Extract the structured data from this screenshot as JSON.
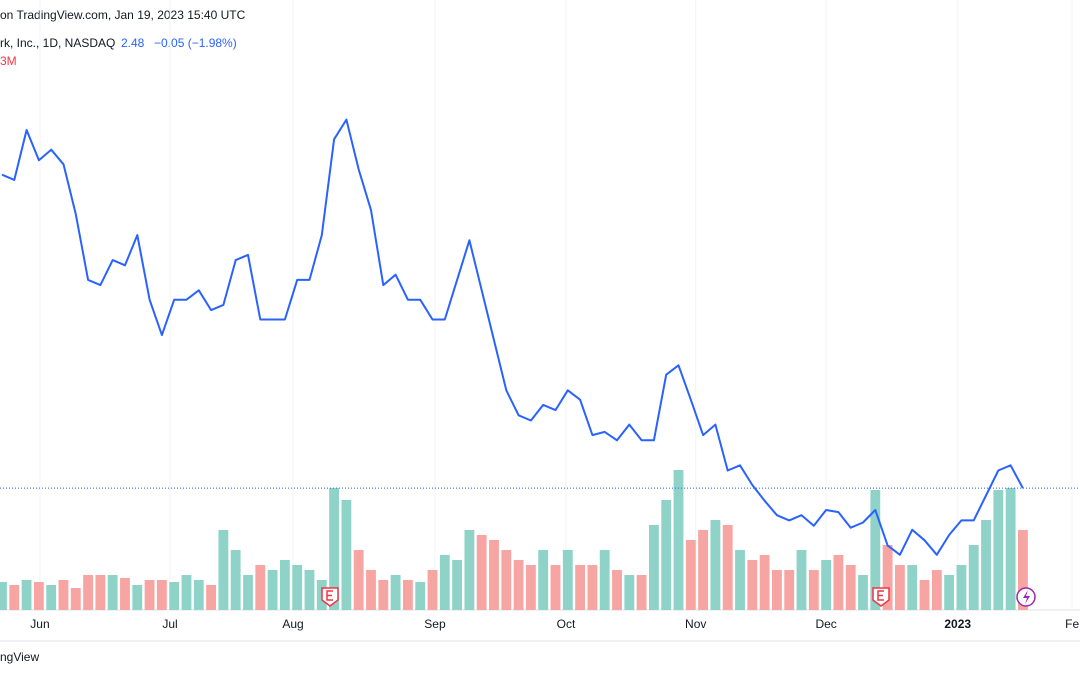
{
  "chart_data": {
    "type": "line",
    "header": "on TradingView.com, Jan 19, 2023 15:40 UTC",
    "symbol": "rk, Inc., 1D, NASDAQ",
    "last_price": "2.48",
    "change": "−0.05 (−1.98%)",
    "volume_label": "3M",
    "footer": "ngView",
    "categories": [
      null,
      null,
      null,
      null,
      null,
      null,
      null,
      null,
      null,
      null,
      null,
      null,
      null,
      null,
      null,
      null,
      null,
      null,
      null,
      null,
      null,
      null,
      null,
      null,
      null,
      null,
      null,
      null,
      null,
      null,
      null,
      null,
      null,
      null,
      null,
      null,
      null,
      null,
      null,
      null,
      null,
      null,
      null,
      null,
      null,
      null,
      null,
      null,
      null,
      null,
      null,
      null,
      null,
      null,
      null,
      null,
      null,
      null,
      null,
      null,
      null,
      null,
      null,
      null,
      null,
      null,
      null,
      null,
      null,
      null,
      null,
      null,
      null,
      null,
      null,
      null,
      null,
      null,
      null,
      null,
      null,
      null,
      null,
      null
    ],
    "values": [
      5.49,
      5.44,
      5.92,
      5.63,
      5.73,
      5.59,
      5.11,
      4.48,
      4.43,
      4.67,
      4.62,
      4.91,
      4.29,
      3.95,
      4.29,
      4.29,
      4.38,
      4.19,
      4.24,
      4.67,
      4.72,
      4.1,
      4.1,
      4.1,
      4.48,
      4.48,
      4.91,
      5.83,
      6.02,
      5.54,
      5.15,
      4.43,
      4.53,
      4.29,
      4.29,
      4.1,
      4.1,
      4.48,
      4.86,
      4.38,
      3.9,
      3.42,
      3.18,
      3.13,
      3.28,
      3.23,
      3.42,
      3.33,
      2.99,
      3.02,
      2.94,
      3.09,
      2.94,
      2.94,
      3.57,
      3.66,
      3.33,
      2.99,
      3.09,
      2.65,
      2.7,
      2.51,
      2.36,
      2.22,
      2.17,
      2.22,
      2.12,
      2.27,
      2.25,
      2.1,
      2.15,
      2.27,
      1.93,
      1.84,
      2.08,
      1.98,
      1.84,
      2.03,
      2.17,
      2.17,
      2.41,
      2.65,
      2.7,
      2.48
    ],
    "volume": [
      28,
      25,
      30,
      28,
      25,
      30,
      22,
      35,
      35,
      35,
      32,
      25,
      30,
      30,
      28,
      35,
      30,
      25,
      80,
      60,
      35,
      45,
      40,
      50,
      45,
      40,
      30,
      122,
      110,
      60,
      40,
      30,
      35,
      30,
      28,
      40,
      55,
      50,
      80,
      75,
      70,
      60,
      50,
      45,
      60,
      45,
      60,
      45,
      45,
      60,
      40,
      35,
      35,
      85,
      110,
      140,
      70,
      80,
      90,
      85,
      60,
      50,
      55,
      40,
      40,
      60,
      40,
      50,
      55,
      45,
      35,
      120,
      65,
      45,
      45,
      30,
      40,
      35,
      45,
      65,
      90,
      120,
      122,
      80
    ],
    "ylim": [
      1.31,
      6.88
    ],
    "vlim": [
      0,
      140
    ],
    "xlim": [
      -0.16,
      87.64
    ],
    "xticks": [
      {
        "value": 3.09,
        "label": "Jun"
      },
      {
        "value": 13.66,
        "label": "Jul"
      },
      {
        "value": 23.66,
        "label": "Aug"
      },
      {
        "value": 35.2,
        "label": "Sep"
      },
      {
        "value": 45.85,
        "label": "Oct"
      },
      {
        "value": 56.4,
        "label": "Nov"
      },
      {
        "value": 67,
        "label": "Dec"
      },
      {
        "value": 77.7,
        "label": "2023"
      },
      {
        "value": 87,
        "label": "Fe"
      }
    ],
    "grid": true,
    "colors": {
      "line": "#2962ff",
      "up": "#8fd3c8",
      "down": "#f7a5a2",
      "price_line": "#2962ff"
    }
  }
}
